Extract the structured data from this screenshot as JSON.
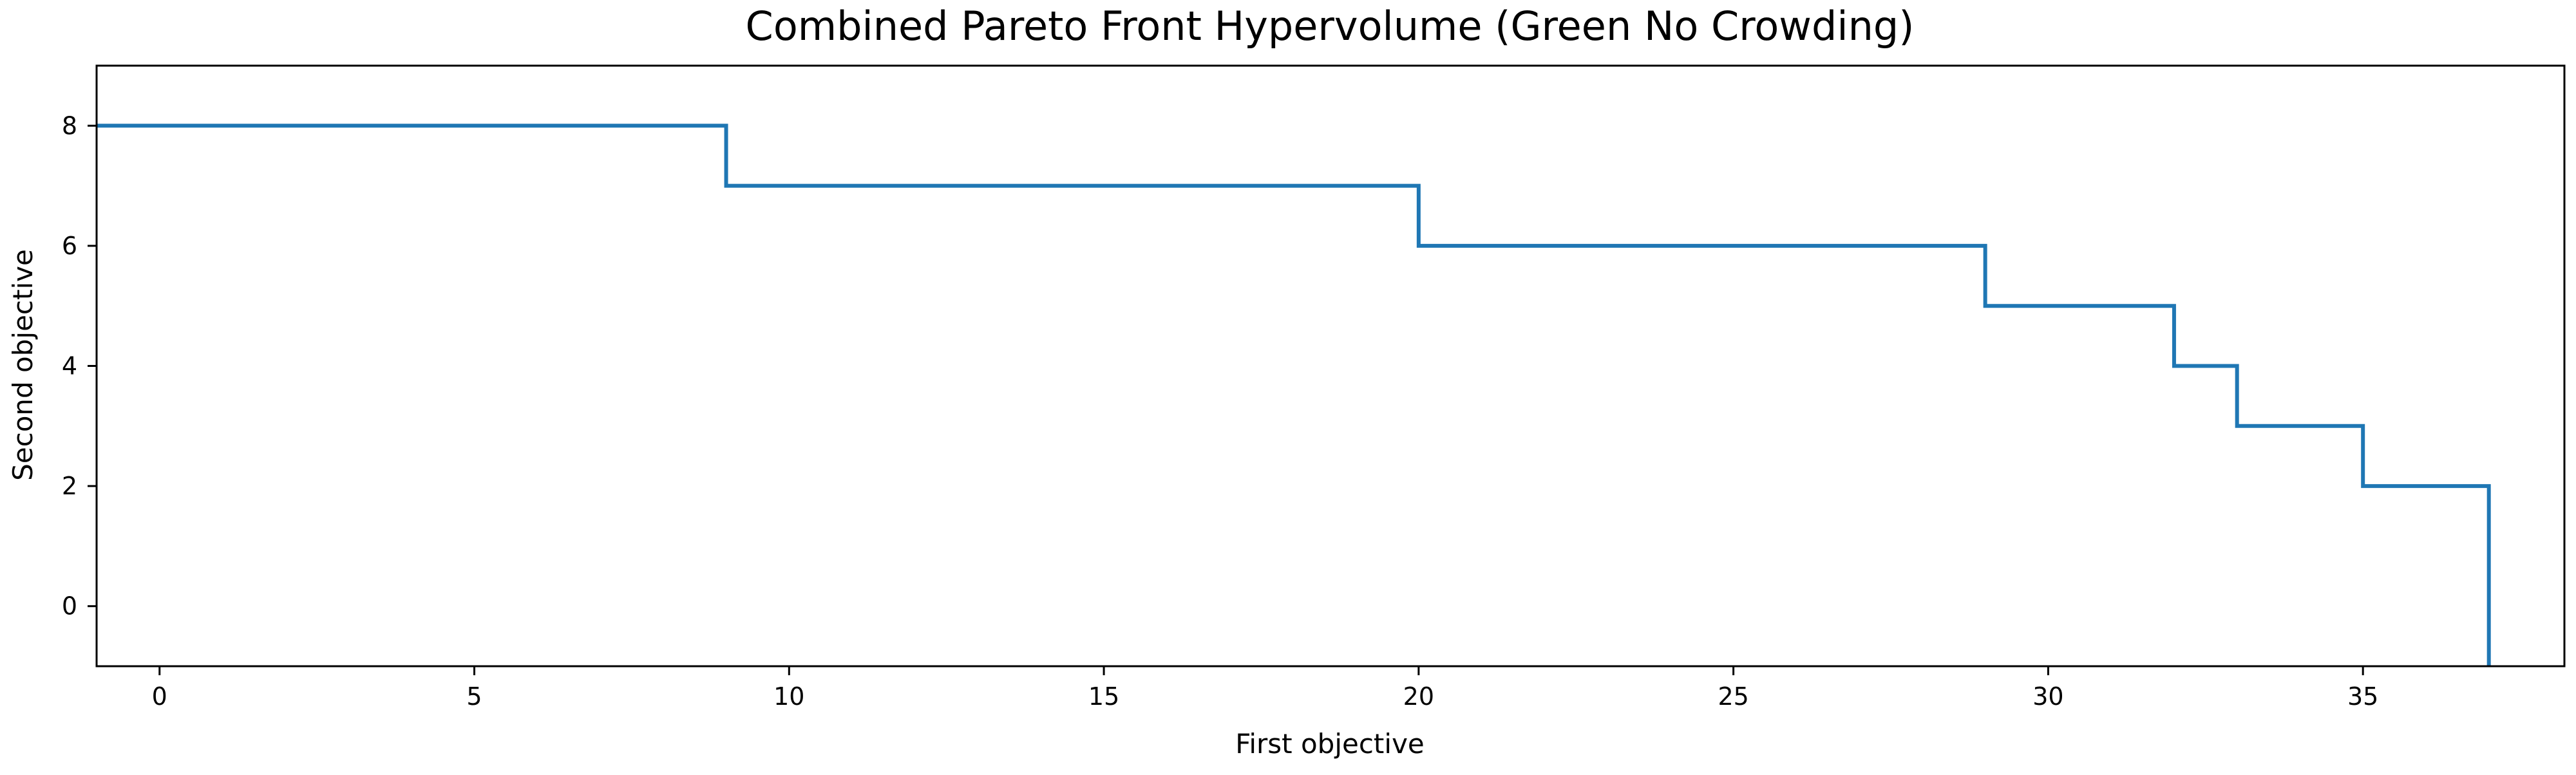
{
  "chart_data": {
    "type": "line",
    "step": "post",
    "title": "Combined Pareto Front Hypervolume (Green No Crowding)",
    "xlabel": "First objective",
    "ylabel": "Second objective",
    "xlim": [
      -1,
      38.2
    ],
    "ylim": [
      -1,
      9
    ],
    "xticks": [
      0,
      5,
      10,
      15,
      20,
      25,
      30,
      35
    ],
    "yticks": [
      0,
      2,
      4,
      6,
      8
    ],
    "grid": false,
    "series": [
      {
        "color": "#1f77b4",
        "x": [
          -1,
          9,
          20,
          29,
          32,
          33,
          35,
          37,
          37
        ],
        "y": [
          8,
          7,
          6,
          5,
          4,
          3,
          2,
          -1,
          -1
        ]
      }
    ]
  }
}
